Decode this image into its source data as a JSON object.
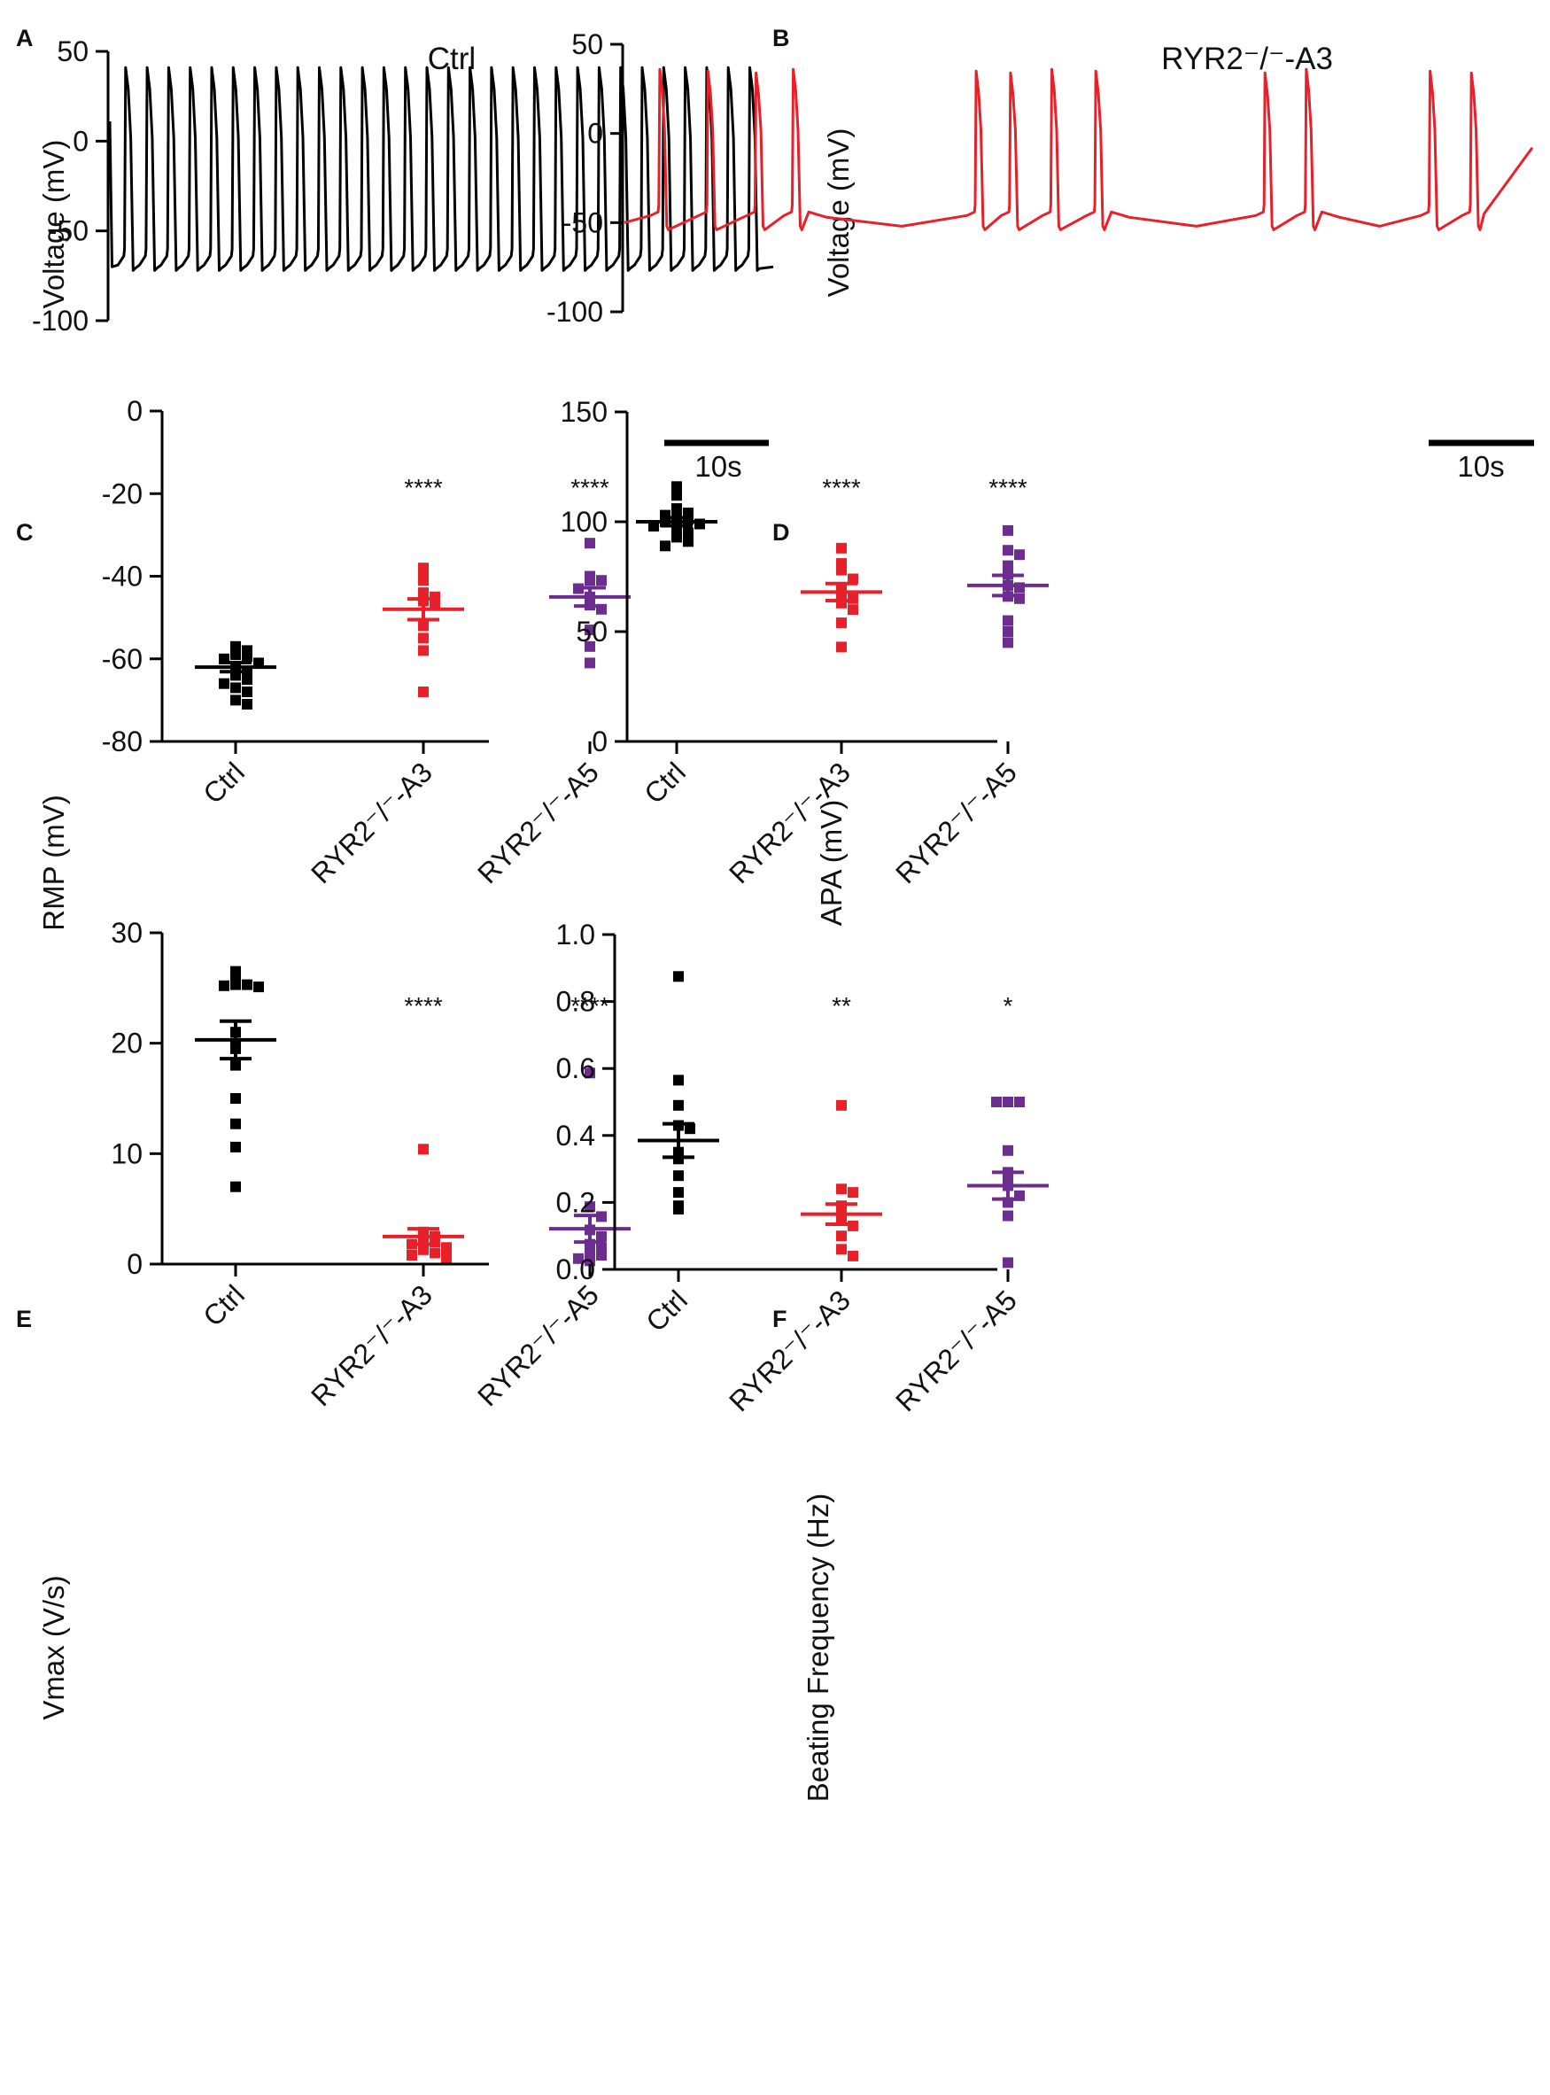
{
  "figure": {
    "colors": {
      "ctrl": "#000000",
      "a3": "#e8202a",
      "a5": "#6b2d8e"
    }
  },
  "chart_data": [
    {
      "id": "A",
      "panel_label": "A",
      "type": "line",
      "title": "Ctrl",
      "ylabel": "Voltage (mV)",
      "ylim": [
        -100,
        50
      ],
      "yticks": [
        50,
        0,
        -50,
        -100
      ],
      "ytick_labels": [
        "50",
        "0",
        "-50",
        "-100"
      ],
      "scale_bar_label": "10s",
      "duration_s": 45,
      "color": "#000000",
      "trace": {
        "resting_mV": -70,
        "peak_mV": 41,
        "num_spikes": 30,
        "first_spike_s": 1.0,
        "interval_s": 1.46
      }
    },
    {
      "id": "B",
      "panel_label": "B",
      "type": "line",
      "title": "RYR2⁻/⁻-A3",
      "ylabel": "Voltage (mV)",
      "ylim": [
        -100,
        50
      ],
      "yticks": [
        50,
        0,
        -50,
        -100
      ],
      "ytick_labels": [
        "50",
        "0",
        "-50",
        "-100"
      ],
      "scale_bar_label": "10s",
      "duration_s": 45,
      "color": "#e8202a",
      "trace": {
        "resting_mV": -50,
        "peak_mV": 36,
        "spike_times_s": [
          2.5,
          6.0,
          9.5,
          12.2,
          25.5,
          28.0,
          31.0,
          34.2,
          46.5,
          49.5,
          58.5,
          61.5
        ]
      }
    },
    {
      "id": "C",
      "panel_label": "C",
      "type": "scatter",
      "ylabel": "RMP (mV)",
      "categories": [
        "Ctrl",
        "RYR2⁻/⁻-A3",
        "RYR2⁻/⁻-A5"
      ],
      "ylim": [
        -80,
        0
      ],
      "yticks": [
        0,
        -20,
        -40,
        -60,
        -80
      ],
      "ytick_labels": [
        "0",
        "-20",
        "-40",
        "-60",
        "-80"
      ],
      "series": [
        {
          "name": "Ctrl",
          "color": "#000000",
          "mean": -62,
          "sem": 1.1,
          "significance": "",
          "points": [
            -57,
            -58,
            -59,
            -59.5,
            -60,
            -61,
            -62,
            -63,
            -64,
            -65,
            -66,
            -67,
            -68,
            -70,
            -71
          ]
        },
        {
          "name": "RYR2⁻/⁻-A3",
          "color": "#e8202a",
          "mean": -48,
          "sem": 2.5,
          "significance": "****",
          "points": [
            -38,
            -39,
            -41,
            -44,
            -45,
            -46,
            -47,
            -52,
            -55,
            -58,
            -68
          ]
        },
        {
          "name": "RYR2⁻/⁻-A5",
          "color": "#6b2d8e",
          "mean": -45,
          "sem": 2.2,
          "significance": "****",
          "points": [
            -32,
            -40,
            -41,
            -41,
            -43,
            -45,
            -47,
            -48,
            -53,
            -57,
            -61
          ]
        }
      ]
    },
    {
      "id": "D",
      "panel_label": "D",
      "type": "scatter",
      "ylabel": "APA (mV)",
      "categories": [
        "Ctrl",
        "RYR2⁻/⁻-A3",
        "RYR2⁻/⁻-A5"
      ],
      "ylim": [
        0,
        150
      ],
      "yticks": [
        150,
        100,
        50,
        0
      ],
      "ytick_labels": [
        "150",
        "100",
        "50",
        "0"
      ],
      "series": [
        {
          "name": "Ctrl",
          "color": "#000000",
          "mean": 100,
          "sem": 1.8,
          "significance": "",
          "points": [
            116,
            112,
            106,
            104,
            103,
            102,
            101,
            100,
            99,
            98,
            97,
            95,
            93,
            91,
            89
          ]
        },
        {
          "name": "RYR2⁻/⁻-A3",
          "color": "#e8202a",
          "mean": 68,
          "sem": 3.9,
          "significance": "****",
          "points": [
            88,
            81,
            78,
            74,
            70,
            66,
            65,
            63,
            60,
            54,
            43
          ]
        },
        {
          "name": "RYR2⁻/⁻-A5",
          "color": "#6b2d8e",
          "mean": 71,
          "sem": 4.6,
          "significance": "****",
          "points": [
            96,
            87,
            85,
            80,
            76,
            71,
            70,
            66,
            65,
            55,
            50,
            45
          ]
        }
      ]
    },
    {
      "id": "E",
      "panel_label": "E",
      "type": "scatter",
      "ylabel": "Vmax (V/s)",
      "categories": [
        "Ctrl",
        "RYR2⁻/⁻-A3",
        "RYR2⁻/⁻-A5"
      ],
      "ylim": [
        0,
        30
      ],
      "yticks": [
        30,
        20,
        10,
        0
      ],
      "ytick_labels": [
        "30",
        "20",
        "10",
        "0"
      ],
      "series": [
        {
          "name": "Ctrl",
          "color": "#000000",
          "mean": 20.3,
          "sem": 1.7,
          "significance": "",
          "points": [
            26.5,
            26,
            25.3,
            25.2,
            25.1,
            25.3,
            21,
            20,
            19.5,
            18,
            15,
            12.7,
            10.6,
            7
          ]
        },
        {
          "name": "RYR2⁻/⁻-A3",
          "color": "#e8202a",
          "mean": 2.5,
          "sem": 0.7,
          "significance": "****",
          "points": [
            10.4,
            2.9,
            2.5,
            2.3,
            2.0,
            1.8,
            1.5,
            1.3,
            1.0,
            0.8,
            0.6
          ]
        },
        {
          "name": "RYR2⁻/⁻-A5",
          "color": "#6b2d8e",
          "mean": 3.2,
          "sem": 1.2,
          "significance": "****",
          "points": [
            17.3,
            5.2,
            4.3,
            3.1,
            2.5,
            1.8,
            1.5,
            1.0,
            0.8,
            0.5,
            0.3
          ]
        }
      ]
    },
    {
      "id": "F",
      "panel_label": "F",
      "type": "scatter",
      "ylabel": "Beating Frequency (Hz)",
      "categories": [
        "Ctrl",
        "RYR2⁻/⁻-A3",
        "RYR2⁻/⁻-A5"
      ],
      "ylim": [
        0,
        1.0
      ],
      "yticks": [
        1.0,
        0.8,
        0.6,
        0.4,
        0.2,
        0.0
      ],
      "ytick_labels": [
        "1.0",
        "0.8",
        "0.6",
        "0.4",
        "0.2",
        "0.0"
      ],
      "series": [
        {
          "name": "Ctrl",
          "color": "#000000",
          "mean": 0.385,
          "sem": 0.05,
          "significance": "",
          "points": [
            0.875,
            0.565,
            0.49,
            0.43,
            0.42,
            0.35,
            0.33,
            0.28,
            0.23,
            0.19,
            0.18
          ]
        },
        {
          "name": "RYR2⁻/⁻-A3",
          "color": "#e8202a",
          "mean": 0.165,
          "sem": 0.03,
          "significance": "**",
          "points": [
            0.49,
            0.24,
            0.23,
            0.19,
            0.18,
            0.15,
            0.13,
            0.1,
            0.06,
            0.04
          ]
        },
        {
          "name": "RYR2⁻/⁻-A5",
          "color": "#6b2d8e",
          "mean": 0.25,
          "sem": 0.04,
          "significance": "*",
          "points": [
            0.5,
            0.5,
            0.5,
            0.355,
            0.29,
            0.27,
            0.25,
            0.22,
            0.2,
            0.16,
            0.02
          ]
        }
      ]
    }
  ]
}
